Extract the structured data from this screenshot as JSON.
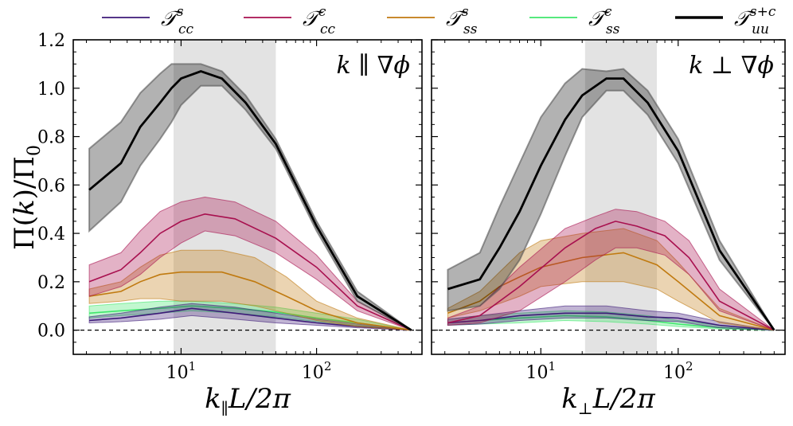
{
  "chart_data": [
    {
      "type": "area",
      "panel": "left",
      "annotation": "k ∥ ∇ϕ",
      "xlabel": "k∥L/2π",
      "ylabel": "Π(k)/Π0",
      "xscale": "log",
      "xlim": [
        1.6,
        600
      ],
      "ylim": [
        -0.1,
        1.2
      ],
      "yticks": [
        0.0,
        0.2,
        0.4,
        0.6,
        0.8,
        1.0,
        1.2
      ],
      "ytick_labels": [
        "0.0",
        "0.2",
        "0.4",
        "0.6",
        "0.8",
        "1.0",
        "1.2"
      ],
      "xtick_labels": [
        {
          "base": "10",
          "exp": "1",
          "value": 10
        },
        {
          "base": "10",
          "exp": "2",
          "value": 100
        }
      ],
      "shaded_band": [
        8.8,
        50
      ],
      "zero_line": 0,
      "series": [
        {
          "key": "Tss_c",
          "x": [
            2.1,
            3.6,
            7,
            12,
            25,
            50,
            100,
            200,
            500
          ],
          "values": [
            0.07,
            0.08,
            0.09,
            0.1,
            0.09,
            0.075,
            0.05,
            0.03,
            0.0
          ],
          "lower": [
            0.05,
            0.06,
            0.07,
            0.08,
            0.07,
            0.055,
            0.035,
            0.02,
            0.0
          ],
          "upper": [
            0.1,
            0.11,
            0.12,
            0.12,
            0.11,
            0.095,
            0.07,
            0.045,
            0.0
          ]
        },
        {
          "key": "Tcc_s",
          "x": [
            2.1,
            3.6,
            7,
            12,
            25,
            50,
            100,
            200,
            500
          ],
          "values": [
            0.04,
            0.05,
            0.07,
            0.09,
            0.07,
            0.05,
            0.03,
            0.015,
            0.0
          ],
          "lower": [
            0.03,
            0.035,
            0.045,
            0.06,
            0.045,
            0.03,
            0.02,
            0.01,
            0.0
          ],
          "upper": [
            0.055,
            0.07,
            0.095,
            0.11,
            0.095,
            0.07,
            0.045,
            0.025,
            0.0
          ]
        },
        {
          "key": "Tss_s",
          "x": [
            2.1,
            3.6,
            5,
            7,
            10,
            20,
            35,
            60,
            100,
            200,
            500
          ],
          "values": [
            0.14,
            0.16,
            0.2,
            0.23,
            0.24,
            0.24,
            0.2,
            0.14,
            0.08,
            0.03,
            0.0
          ],
          "lower": [
            0.11,
            0.12,
            0.13,
            0.13,
            0.12,
            0.12,
            0.1,
            0.07,
            0.04,
            0.015,
            0.0
          ],
          "upper": [
            0.17,
            0.2,
            0.26,
            0.31,
            0.33,
            0.33,
            0.3,
            0.22,
            0.12,
            0.05,
            0.0
          ]
        },
        {
          "key": "Tcc_c",
          "x": [
            2.1,
            3.6,
            5,
            7,
            10,
            15,
            25,
            50,
            100,
            200,
            500
          ],
          "values": [
            0.2,
            0.25,
            0.32,
            0.4,
            0.45,
            0.48,
            0.46,
            0.38,
            0.26,
            0.1,
            0.0
          ],
          "lower": [
            0.14,
            0.18,
            0.23,
            0.3,
            0.36,
            0.41,
            0.39,
            0.32,
            0.21,
            0.08,
            0.0
          ],
          "upper": [
            0.27,
            0.32,
            0.41,
            0.49,
            0.53,
            0.55,
            0.53,
            0.45,
            0.31,
            0.12,
            0.0
          ]
        },
        {
          "key": "Tuu_sc",
          "x": [
            2.1,
            3.6,
            5,
            7,
            8.5,
            10,
            14,
            20,
            30,
            50,
            100,
            200,
            500
          ],
          "values": [
            0.58,
            0.69,
            0.84,
            0.94,
            1.0,
            1.04,
            1.07,
            1.04,
            0.94,
            0.77,
            0.43,
            0.14,
            0.0
          ],
          "lower": [
            0.41,
            0.53,
            0.68,
            0.79,
            0.86,
            0.93,
            1.01,
            1.01,
            0.91,
            0.75,
            0.41,
            0.12,
            0.0
          ],
          "upper": [
            0.75,
            0.86,
            0.98,
            1.06,
            1.1,
            1.1,
            1.1,
            1.07,
            0.97,
            0.79,
            0.45,
            0.16,
            0.0
          ]
        }
      ]
    },
    {
      "type": "area",
      "panel": "right",
      "annotation": "k ⊥ ∇ϕ",
      "xlabel": "k⊥L/2π",
      "ylabel": "",
      "xscale": "log",
      "xlim": [
        1.6,
        600
      ],
      "ylim": [
        -0.1,
        1.2
      ],
      "xtick_labels": [
        {
          "base": "10",
          "exp": "1",
          "value": 10
        },
        {
          "base": "10",
          "exp": "2",
          "value": 100
        }
      ],
      "shaded_band": [
        21,
        70
      ],
      "zero_line": 0,
      "series": [
        {
          "key": "Tss_c",
          "x": [
            2.1,
            3.6,
            7,
            15,
            30,
            60,
            100,
            200,
            500
          ],
          "values": [
            0.03,
            0.04,
            0.05,
            0.06,
            0.055,
            0.04,
            0.025,
            0.01,
            0.0
          ],
          "lower": [
            0.02,
            0.025,
            0.03,
            0.04,
            0.035,
            0.025,
            0.015,
            0.005,
            0.0
          ],
          "upper": [
            0.045,
            0.06,
            0.07,
            0.08,
            0.075,
            0.06,
            0.04,
            0.02,
            0.0
          ]
        },
        {
          "key": "Tcc_s",
          "x": [
            2.1,
            3.6,
            7,
            15,
            30,
            60,
            100,
            200,
            500
          ],
          "values": [
            0.03,
            0.04,
            0.06,
            0.07,
            0.07,
            0.055,
            0.05,
            0.02,
            0.0
          ],
          "lower": [
            0.02,
            0.025,
            0.04,
            0.05,
            0.05,
            0.04,
            0.035,
            0.01,
            0.0
          ],
          "upper": [
            0.045,
            0.06,
            0.08,
            0.1,
            0.1,
            0.08,
            0.07,
            0.035,
            0.0
          ]
        },
        {
          "key": "Tss_s",
          "x": [
            2.1,
            3.6,
            5,
            7,
            10,
            20,
            40,
            70,
            100,
            200,
            500
          ],
          "values": [
            0.07,
            0.12,
            0.18,
            0.22,
            0.26,
            0.3,
            0.32,
            0.27,
            0.2,
            0.06,
            0.0
          ],
          "lower": [
            0.05,
            0.08,
            0.11,
            0.14,
            0.18,
            0.2,
            0.2,
            0.17,
            0.12,
            0.03,
            0.0
          ],
          "upper": [
            0.09,
            0.16,
            0.24,
            0.32,
            0.37,
            0.4,
            0.42,
            0.37,
            0.28,
            0.09,
            0.0
          ]
        },
        {
          "key": "Tcc_c",
          "x": [
            2.1,
            3.6,
            7,
            15,
            25,
            35,
            50,
            80,
            120,
            200,
            500
          ],
          "values": [
            0.03,
            0.06,
            0.18,
            0.34,
            0.42,
            0.45,
            0.43,
            0.39,
            0.3,
            0.12,
            0.0
          ],
          "lower": [
            0.02,
            0.03,
            0.08,
            0.2,
            0.29,
            0.34,
            0.34,
            0.31,
            0.23,
            0.08,
            0.0
          ],
          "upper": [
            0.05,
            0.1,
            0.26,
            0.42,
            0.47,
            0.5,
            0.49,
            0.45,
            0.37,
            0.17,
            0.0
          ]
        },
        {
          "key": "Tuu_sc",
          "x": [
            2.1,
            3.6,
            5,
            7,
            10,
            15,
            20,
            30,
            40,
            60,
            100,
            200,
            500
          ],
          "values": [
            0.17,
            0.21,
            0.34,
            0.49,
            0.68,
            0.87,
            0.97,
            1.04,
            1.04,
            0.94,
            0.74,
            0.33,
            0.0
          ],
          "lower": [
            0.08,
            0.1,
            0.17,
            0.29,
            0.48,
            0.72,
            0.88,
            0.99,
            0.99,
            0.89,
            0.69,
            0.29,
            0.0
          ],
          "upper": [
            0.25,
            0.32,
            0.51,
            0.69,
            0.88,
            1.02,
            1.08,
            1.07,
            1.08,
            0.99,
            0.79,
            0.37,
            0.0
          ]
        }
      ]
    }
  ],
  "legend": [
    {
      "key": "Tcc_s",
      "main": "𝒯",
      "sub": "cc",
      "sup": "s",
      "color": "#3d1a78",
      "thick": false
    },
    {
      "key": "Tcc_c",
      "main": "𝒯",
      "sub": "cc",
      "sup": "c",
      "color": "#a8104f",
      "thick": false
    },
    {
      "key": "Tss_s",
      "main": "𝒯",
      "sub": "ss",
      "sup": "s",
      "color": "#c07a10",
      "thick": false
    },
    {
      "key": "Tss_c",
      "main": "𝒯",
      "sub": "ss",
      "sup": "c",
      "color": "#3ee66b",
      "thick": false
    },
    {
      "key": "Tuu_sc",
      "main": "𝒯",
      "sub": "uu",
      "sup": "s+c",
      "color": "#000000",
      "thick": true
    }
  ],
  "colors": {
    "Tcc_s": "#3d1a78",
    "Tcc_c": "#a8104f",
    "Tss_s": "#c07a10",
    "Tss_c": "#3ee66b",
    "Tuu_sc": "#000000",
    "band": "#e3e3e3"
  },
  "ylabel_parts": {
    "pi": "Π",
    "open": "(",
    "k": "k",
    "close": ")/",
    "pi0": "Π",
    "zero": "0"
  },
  "xlabel_left_parts": {
    "k": "k",
    "sub": "∥",
    "rest": "L/2π"
  },
  "xlabel_right_parts": {
    "k": "k",
    "sub": "⊥",
    "rest": "L/2π"
  }
}
